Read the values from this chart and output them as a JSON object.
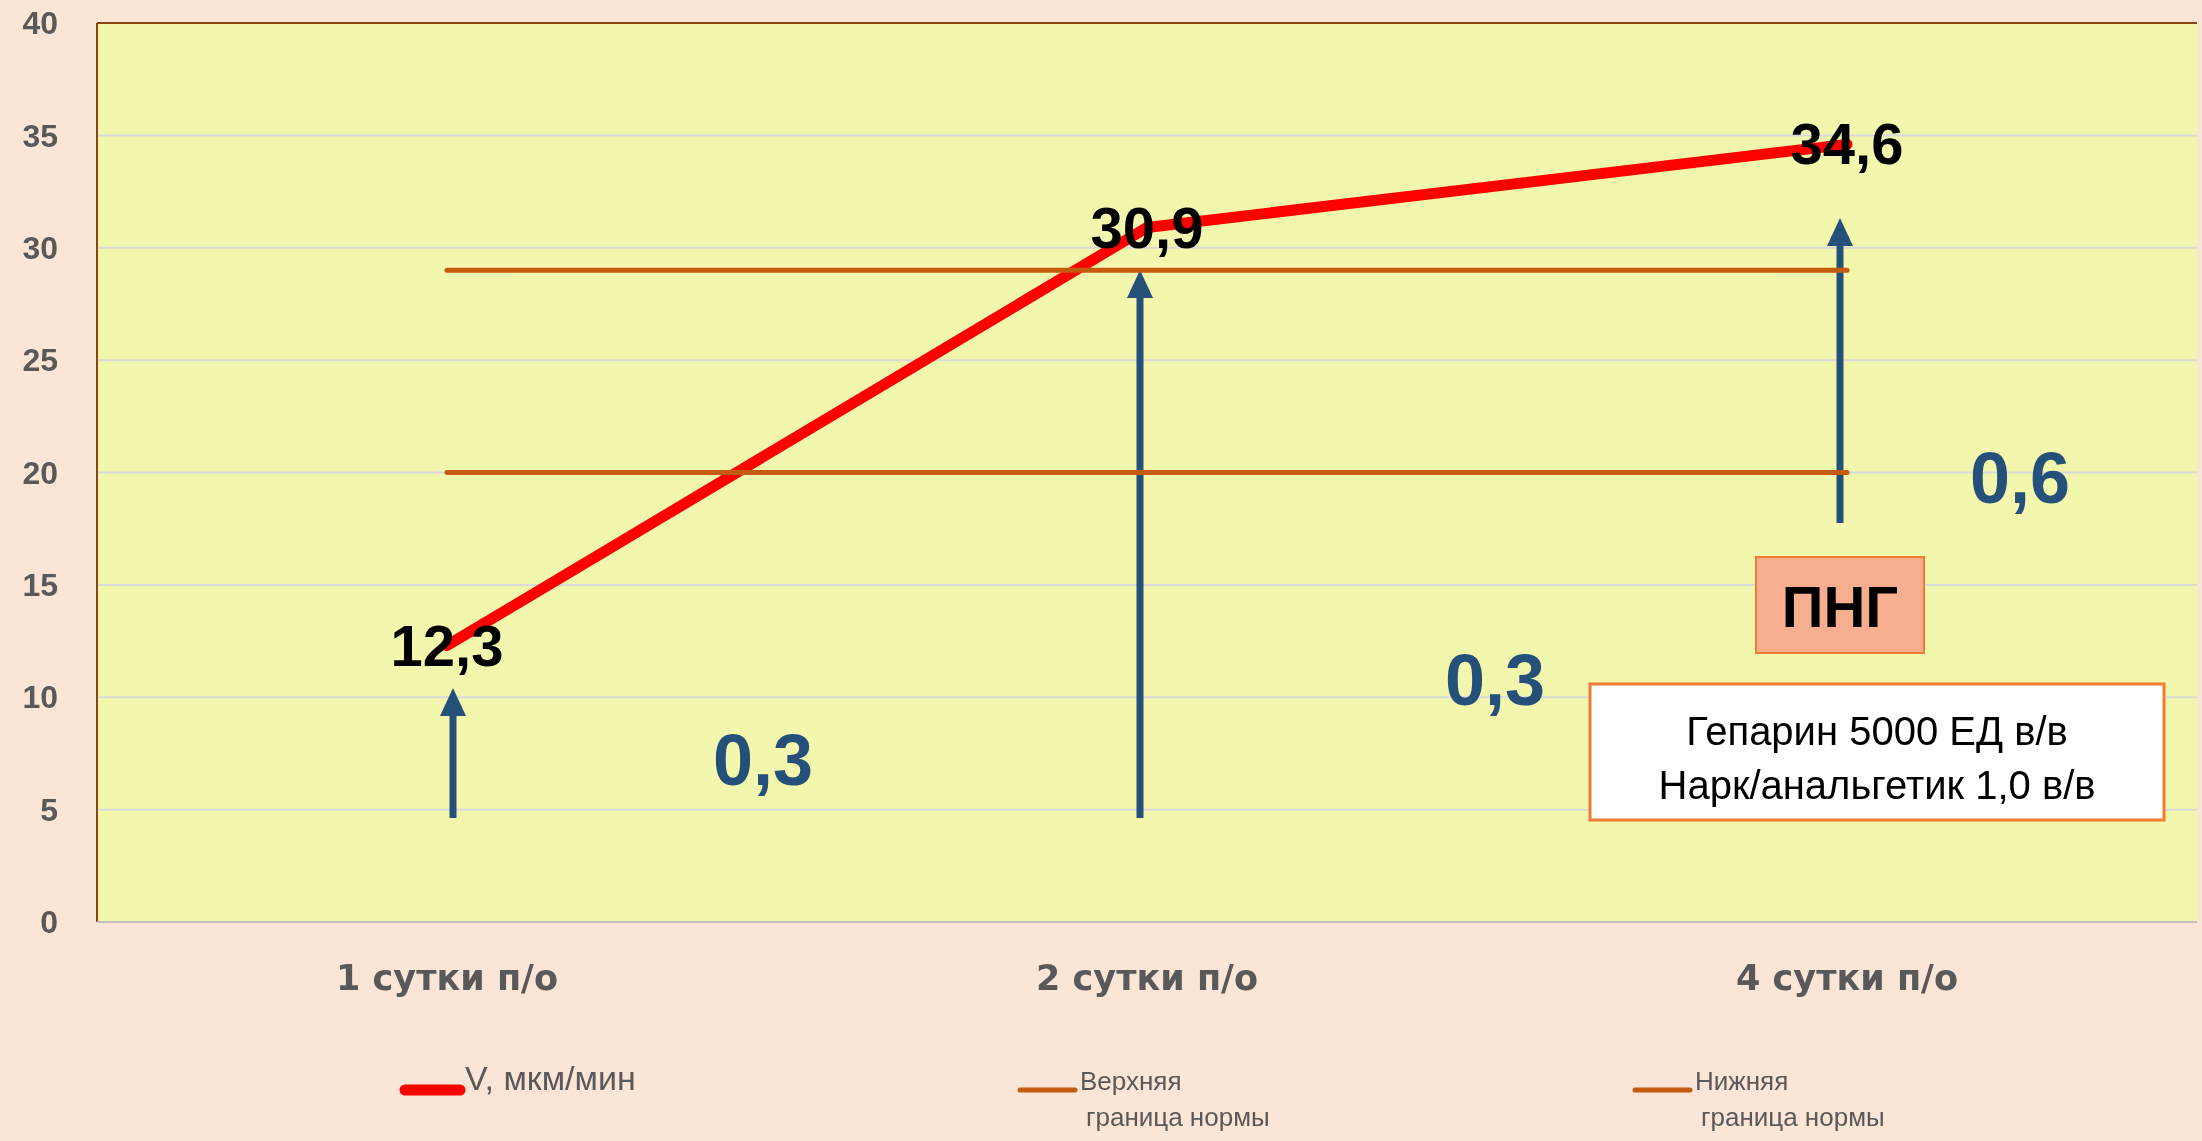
{
  "chart_data": {
    "type": "line",
    "categories": [
      "1 сутки п/о",
      "2 сутки п/о",
      "4 сутки п/о"
    ],
    "series": [
      {
        "name": "V, мкм/мин",
        "color": "#ff0000",
        "values": [
          12.3,
          30.9,
          34.6
        ],
        "value_labels": [
          "12,3",
          "30,9",
          "34,6"
        ]
      },
      {
        "name": "Верхняя граница нормы",
        "color": "#c55a11",
        "values": [
          29,
          29,
          29
        ]
      },
      {
        "name": "Нижняя граница нормы",
        "color": "#c55a11",
        "values": [
          20,
          20,
          20
        ]
      }
    ],
    "ylim": [
      0,
      40
    ],
    "yticks": [
      0,
      5,
      10,
      15,
      20,
      25,
      30,
      35,
      40
    ],
    "grid": "y",
    "legend": "bottom",
    "marker": "none",
    "line_style": "solid",
    "annotations": [
      "0,3",
      "0,3",
      "0,6",
      "ПНГ",
      "Гепарин 5000 ЕД в/в\nНарк/анальгетик 1,0 в/в"
    ]
  }
}
